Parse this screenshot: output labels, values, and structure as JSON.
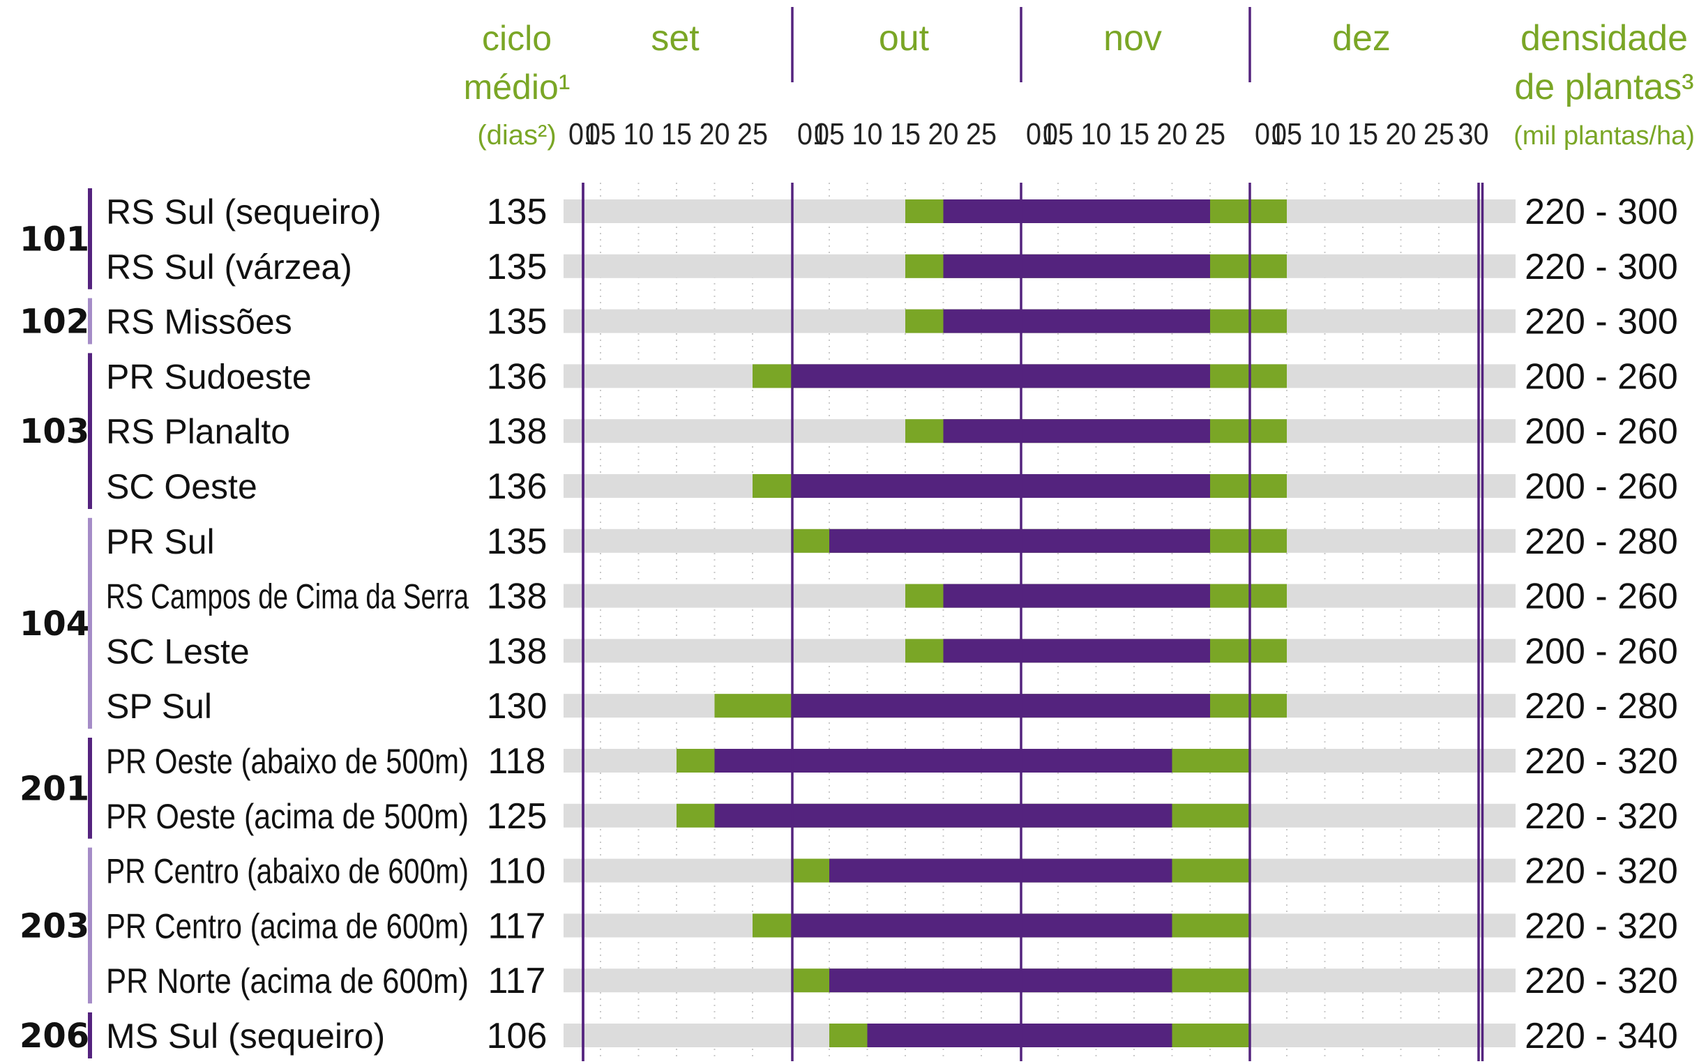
{
  "colors": {
    "accent": "#7aa626",
    "purple": "#54237e",
    "track": "#dcdcdc",
    "bracket_dark": "#54237e",
    "bracket_light": "#a58cc7"
  },
  "chart_data": {
    "type": "gantt",
    "headers": {
      "cycle": [
        "ciclo",
        "médio¹",
        "(dias²)"
      ],
      "density": [
        "densidade",
        "de plantas³",
        "(mil plantas/ha)"
      ]
    },
    "months": [
      "set",
      "out",
      "nov",
      "dez"
    ],
    "day_ticks": [
      "01",
      "05",
      "10",
      "15",
      "20",
      "25"
    ],
    "dec_extra_tick": "30",
    "rows": [
      {
        "group": "101",
        "region": "RS Sul (sequeiro)",
        "cycle": "135",
        "green_start": "10-15",
        "purple_start": "10-20",
        "purple_end": "11-25",
        "green_end": "12-05",
        "density": "220 - 300"
      },
      {
        "group": "101",
        "region": "RS Sul (várzea)",
        "cycle": "135",
        "green_start": "10-15",
        "purple_start": "10-20",
        "purple_end": "11-25",
        "green_end": "12-05",
        "density": "220 - 300"
      },
      {
        "group": "102",
        "region": "RS Missões",
        "cycle": "135",
        "green_start": "10-15",
        "purple_start": "10-20",
        "purple_end": "11-25",
        "green_end": "12-05",
        "density": "220 - 300"
      },
      {
        "group": "103",
        "region": "PR Sudoeste",
        "cycle": "136",
        "green_start": "09-25",
        "purple_start": "10-01",
        "purple_end": "11-25",
        "green_end": "12-05",
        "density": "200 - 260"
      },
      {
        "group": "103",
        "region": "RS Planalto",
        "cycle": "138",
        "green_start": "10-15",
        "purple_start": "10-20",
        "purple_end": "11-25",
        "green_end": "12-05",
        "density": "200 - 260"
      },
      {
        "group": "103",
        "region": "SC Oeste",
        "cycle": "136",
        "green_start": "09-25",
        "purple_start": "10-01",
        "purple_end": "11-25",
        "green_end": "12-05",
        "density": "200 - 260"
      },
      {
        "group": "104",
        "region": "PR Sul",
        "cycle": "135",
        "green_start": "10-01",
        "purple_start": "10-05",
        "purple_end": "11-25",
        "green_end": "12-05",
        "density": "220 - 280"
      },
      {
        "group": "104",
        "region": "RS Campos de Cima da Serra",
        "cycle": "138",
        "green_start": "10-15",
        "purple_start": "10-20",
        "purple_end": "11-25",
        "green_end": "12-05",
        "density": "200 - 260"
      },
      {
        "group": "104",
        "region": "SC Leste",
        "cycle": "138",
        "green_start": "10-15",
        "purple_start": "10-20",
        "purple_end": "11-25",
        "green_end": "12-05",
        "density": "200 - 260"
      },
      {
        "group": "104",
        "region": "SP Sul",
        "cycle": "130",
        "green_start": "09-20",
        "purple_start": "10-01",
        "purple_end": "11-25",
        "green_end": "12-05",
        "density": "220 - 280"
      },
      {
        "group": "201",
        "region": "PR Oeste (abaixo de 500m)",
        "cycle": "118",
        "green_start": "09-15",
        "purple_start": "09-20",
        "purple_end": "11-20",
        "green_end": "12-01",
        "density": "220 - 320"
      },
      {
        "group": "201",
        "region": "PR Oeste (acima de 500m)",
        "cycle": "125",
        "green_start": "09-15",
        "purple_start": "09-20",
        "purple_end": "11-20",
        "green_end": "12-01",
        "density": "220 - 320"
      },
      {
        "group": "203",
        "region": "PR Centro (abaixo de 600m)",
        "cycle": "110",
        "green_start": "10-01",
        "purple_start": "10-05",
        "purple_end": "11-20",
        "green_end": "12-01",
        "density": "220 - 320"
      },
      {
        "group": "203",
        "region": "PR Centro (acima de 600m)",
        "cycle": "117",
        "green_start": "09-25",
        "purple_start": "10-01",
        "purple_end": "11-20",
        "green_end": "12-01",
        "density": "220 - 320"
      },
      {
        "group": "203",
        "region": "PR Norte (acima de 600m)",
        "cycle": "117",
        "green_start": "10-01",
        "purple_start": "10-05",
        "purple_end": "11-20",
        "green_end": "12-01",
        "density": "220 - 320"
      },
      {
        "group": "206",
        "region": "MS Sul (sequeiro)",
        "cycle": "106",
        "green_start": "10-05",
        "purple_start": "10-10",
        "purple_end": "11-20",
        "green_end": "12-01",
        "density": "220 - 340"
      }
    ],
    "groups": [
      {
        "label": "101",
        "first_row": 0,
        "last_row": 1,
        "tone": "dark"
      },
      {
        "label": "102",
        "first_row": 2,
        "last_row": 2,
        "tone": "light"
      },
      {
        "label": "103",
        "first_row": 3,
        "last_row": 5,
        "tone": "dark"
      },
      {
        "label": "104",
        "first_row": 6,
        "last_row": 9,
        "tone": "light"
      },
      {
        "label": "201",
        "first_row": 10,
        "last_row": 11,
        "tone": "dark"
      },
      {
        "label": "203",
        "first_row": 12,
        "last_row": 14,
        "tone": "light"
      },
      {
        "label": "206",
        "first_row": 15,
        "last_row": 15,
        "tone": "dark"
      }
    ]
  }
}
